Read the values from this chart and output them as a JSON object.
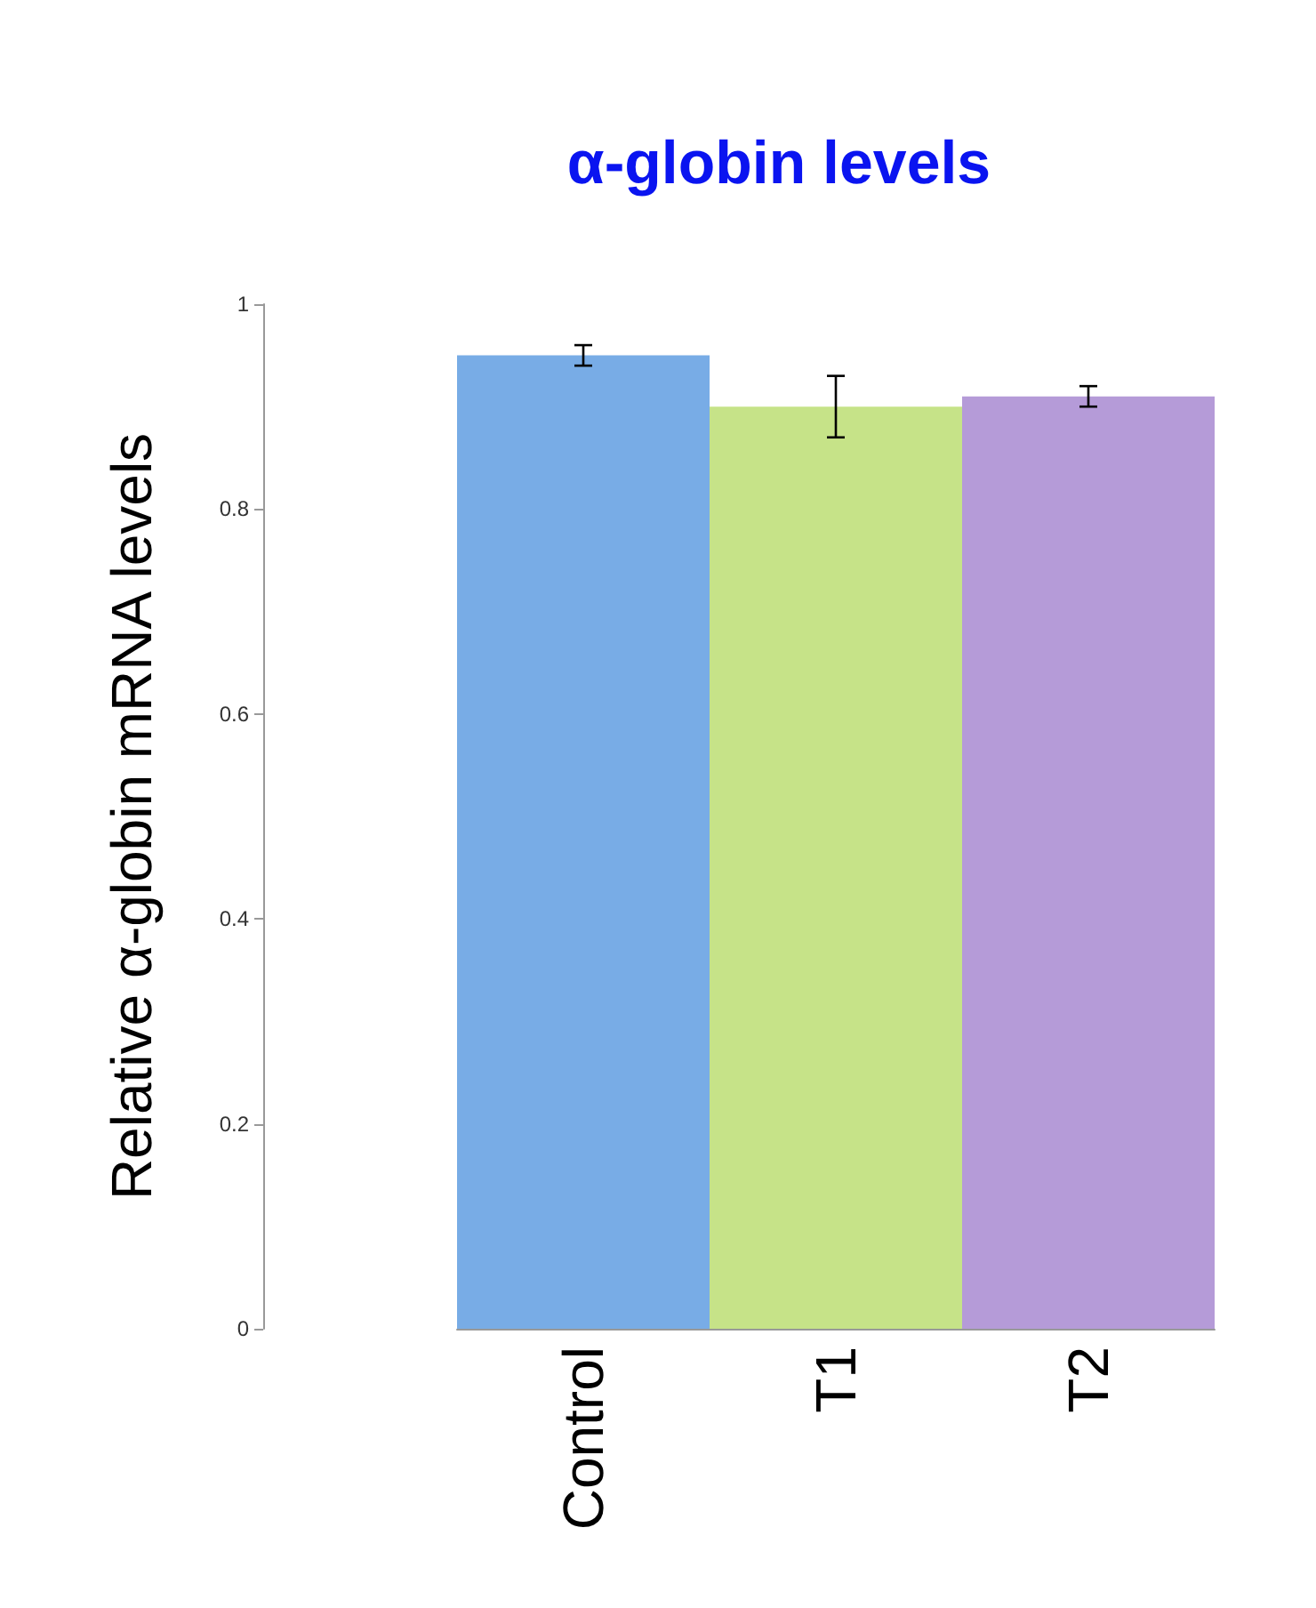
{
  "chart_data": {
    "type": "bar",
    "title": "α-globin levels",
    "ylabel": "Relative α-globin mRNA levels",
    "categories": [
      "Control",
      "T1",
      "T2"
    ],
    "values": [
      0.95,
      0.9,
      0.91
    ],
    "errors": [
      0.01,
      0.03,
      0.01
    ],
    "colors": [
      "#78ace6",
      "#c6e388",
      "#b59bd8"
    ],
    "ylim": [
      0,
      1
    ],
    "yticks": [
      0,
      0.2,
      0.4,
      0.6,
      0.8,
      1
    ],
    "grid": false
  }
}
